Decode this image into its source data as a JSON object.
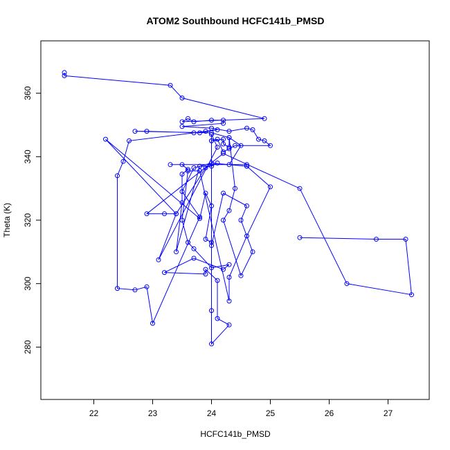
{
  "chart_data": {
    "type": "line",
    "title": "ATOM2 Southbound HCFC141b_PMSD",
    "xlabel": "HCFC141b_PMSD",
    "ylabel": "Theta (K)",
    "xlim": [
      21.1,
      27.7
    ],
    "ylim": [
      263.5,
      376.5
    ],
    "xticks": [
      22,
      23,
      24,
      25,
      26,
      27
    ],
    "yticks": [
      280,
      300,
      320,
      340,
      360
    ],
    "grid": false,
    "series_color": "#0000ff",
    "points": [
      [
        21.5,
        366.5
      ],
      [
        21.5,
        365.5
      ],
      [
        23.3,
        362.5
      ],
      [
        23.5,
        358.5
      ],
      [
        24.9,
        352.0
      ],
      [
        23.5,
        351.0
      ],
      [
        23.6,
        352.0
      ],
      [
        23.7,
        351.0
      ],
      [
        24.0,
        351.5
      ],
      [
        24.2,
        351.5
      ],
      [
        24.2,
        350.5
      ],
      [
        23.5,
        349.5
      ],
      [
        24.0,
        349.0
      ],
      [
        24.3,
        348.0
      ],
      [
        24.6,
        349.0
      ],
      [
        24.7,
        348.5
      ],
      [
        24.8,
        345.5
      ],
      [
        24.9,
        345.0
      ],
      [
        25.0,
        343.5
      ],
      [
        24.4,
        343.5
      ],
      [
        24.3,
        342.5
      ],
      [
        24.2,
        341.5
      ],
      [
        24.1,
        345.5
      ],
      [
        24.0,
        345.0
      ],
      [
        24.2,
        345.5
      ],
      [
        24.2,
        344.0
      ],
      [
        24.3,
        343.0
      ],
      [
        24.3,
        346.0
      ],
      [
        24.0,
        347.5
      ],
      [
        22.7,
        348.0
      ],
      [
        22.9,
        348.0
      ],
      [
        23.8,
        347.5
      ],
      [
        24.1,
        348.5
      ],
      [
        23.9,
        348.0
      ],
      [
        23.7,
        347.5
      ],
      [
        22.6,
        345.0
      ],
      [
        22.5,
        338.5
      ],
      [
        22.4,
        334.0
      ],
      [
        22.4,
        298.5
      ],
      [
        22.7,
        298.0
      ],
      [
        22.9,
        299.0
      ],
      [
        23.0,
        287.5
      ],
      [
        23.8,
        321.0
      ],
      [
        23.5,
        329.0
      ],
      [
        23.7,
        336.5
      ],
      [
        24.0,
        338.0
      ],
      [
        24.6,
        337.0
      ],
      [
        24.6,
        337.5
      ],
      [
        23.3,
        337.5
      ],
      [
        23.5,
        337.5
      ],
      [
        23.6,
        336.0
      ],
      [
        23.5,
        334.5
      ],
      [
        23.5,
        325.5
      ],
      [
        23.4,
        310.0
      ],
      [
        23.8,
        337.0
      ],
      [
        24.0,
        337.0
      ],
      [
        24.1,
        338.0
      ],
      [
        23.9,
        336.5
      ],
      [
        23.4,
        322.0
      ],
      [
        22.2,
        345.5
      ],
      [
        23.8,
        320.5
      ],
      [
        23.9,
        328.5
      ],
      [
        24.0,
        324.5
      ],
      [
        23.9,
        314.0
      ],
      [
        24.0,
        313.0
      ],
      [
        24.0,
        312.0
      ],
      [
        24.2,
        328.5
      ],
      [
        24.6,
        324.5
      ],
      [
        24.5,
        320.0
      ],
      [
        24.7,
        310.0
      ],
      [
        24.5,
        302.5
      ],
      [
        24.2,
        320.0
      ],
      [
        24.3,
        323.0
      ],
      [
        24.4,
        330.0
      ],
      [
        24.3,
        346.0
      ],
      [
        24.5,
        343.5
      ],
      [
        24.3,
        337.5
      ],
      [
        24.6,
        337.0
      ],
      [
        25.0,
        330.5
      ],
      [
        24.6,
        315.0
      ],
      [
        24.3,
        302.0
      ],
      [
        24.3,
        294.5
      ],
      [
        23.8,
        335.5
      ],
      [
        23.6,
        335.5
      ],
      [
        23.5,
        320.0
      ],
      [
        23.6,
        313.0
      ],
      [
        23.7,
        311.0
      ],
      [
        24.0,
        305.0
      ],
      [
        24.3,
        306.0
      ],
      [
        24.2,
        304.5
      ],
      [
        23.7,
        308.0
      ],
      [
        23.2,
        303.5
      ],
      [
        23.9,
        303.0
      ],
      [
        23.9,
        304.5
      ],
      [
        24.1,
        301.0
      ],
      [
        24.1,
        289.0
      ],
      [
        24.3,
        287.0
      ],
      [
        24.0,
        281.0
      ],
      [
        24.0,
        291.5
      ],
      [
        24.0,
        345.0
      ],
      [
        24.0,
        347.0
      ],
      [
        24.1,
        343.0
      ],
      [
        23.1,
        307.5
      ],
      [
        23.4,
        322.0
      ],
      [
        23.2,
        322.0
      ],
      [
        22.9,
        322.0
      ],
      [
        24.2,
        341.0
      ],
      [
        25.5,
        330.0
      ],
      [
        26.3,
        300.0
      ],
      [
        27.4,
        296.5
      ],
      [
        27.3,
        314.0
      ],
      [
        26.8,
        314.0
      ],
      [
        25.5,
        314.5
      ]
    ]
  }
}
